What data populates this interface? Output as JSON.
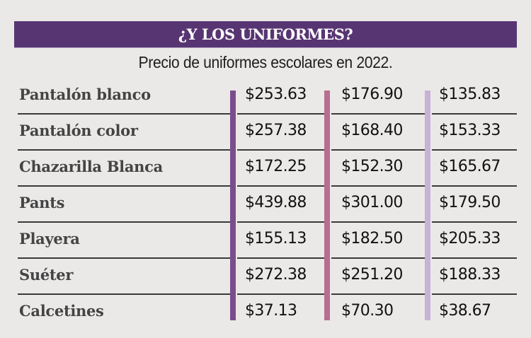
{
  "title": "¿Y LOS UNIFORMES?",
  "subtitle": "Precio de uniformes escolares en 2022.",
  "colors": {
    "header_bg": "#573572",
    "series_1": "#7a4e8c",
    "series_2": "#b86e90",
    "series_3": "#c8b2d6",
    "background": "#ebe9e8"
  },
  "rows": [
    {
      "label": "Pantalón blanco",
      "v1": "$253.63",
      "v2": "$176.90",
      "v3": "$135.83"
    },
    {
      "label": "Pantalón color",
      "v1": "$257.38",
      "v2": "$168.40",
      "v3": "$153.33"
    },
    {
      "label": "Chazarilla Blanca",
      "v1": "$172.25",
      "v2": "$152.30",
      "v3": "$165.67"
    },
    {
      "label": "Pants",
      "v1": "$439.88",
      "v2": "$301.00",
      "v3": "$179.50"
    },
    {
      "label": "Playera",
      "v1": "$155.13",
      "v2": "$182.50",
      "v3": "$205.33"
    },
    {
      "label": "Suéter",
      "v1": "$272.38",
      "v2": "$251.20",
      "v3": "$188.33"
    },
    {
      "label": "Calcetines",
      "v1": "$37.13",
      "v2": "$70.30",
      "v3": "$38.67"
    }
  ],
  "chart_data": {
    "type": "table",
    "title": "¿Y LOS UNIFORMES?",
    "subtitle": "Precio de uniformes escolares en 2022.",
    "categories": [
      "Pantalón blanco",
      "Pantalón color",
      "Chazarilla Blanca",
      "Pants",
      "Playera",
      "Suéter",
      "Calcetines"
    ],
    "series": [
      {
        "name": "",
        "color": "#7a4e8c",
        "values": [
          253.63,
          257.38,
          172.25,
          439.88,
          155.13,
          272.38,
          37.13
        ]
      },
      {
        "name": "",
        "color": "#b86e90",
        "values": [
          176.9,
          168.4,
          152.3,
          301.0,
          182.5,
          251.2,
          70.3
        ]
      },
      {
        "name": "",
        "color": "#c8b2d6",
        "values": [
          135.83,
          153.33,
          165.67,
          179.5,
          205.33,
          188.33,
          38.67
        ]
      }
    ]
  }
}
